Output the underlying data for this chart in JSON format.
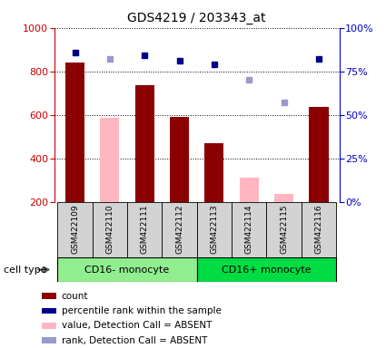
{
  "title": "GDS4219 / 203343_at",
  "samples": [
    "GSM422109",
    "GSM422110",
    "GSM422111",
    "GSM422112",
    "GSM422113",
    "GSM422114",
    "GSM422115",
    "GSM422116"
  ],
  "count_values": [
    840,
    null,
    735,
    590,
    470,
    null,
    null,
    635
  ],
  "absent_values": [
    null,
    585,
    null,
    null,
    null,
    310,
    235,
    null
  ],
  "percentile_present": [
    86,
    null,
    84,
    81,
    79,
    null,
    null,
    82
  ],
  "percentile_absent": [
    null,
    82,
    null,
    null,
    null,
    70,
    57,
    null
  ],
  "ylim_left": [
    200,
    1000
  ],
  "ylim_right": [
    0,
    100
  ],
  "yticks_left": [
    200,
    400,
    600,
    800,
    1000
  ],
  "yticks_right": [
    0,
    25,
    50,
    75,
    100
  ],
  "bar_color_present": "#8B0000",
  "bar_color_absent": "#FFB6C1",
  "dot_color_present": "#00008B",
  "dot_color_absent": "#9999CC",
  "plot_bg": "#ffffff",
  "ylabel_left_color": "#cc0000",
  "ylabel_right_color": "#0000cc",
  "group1_color": "#90EE90",
  "group2_color": "#00DD44",
  "sample_box_color": "#d3d3d3",
  "legend_items": [
    {
      "label": "count",
      "color": "#8B0000"
    },
    {
      "label": "percentile rank within the sample",
      "color": "#00008B"
    },
    {
      "label": "value, Detection Call = ABSENT",
      "color": "#FFB6C1"
    },
    {
      "label": "rank, Detection Call = ABSENT",
      "color": "#9999CC"
    }
  ]
}
